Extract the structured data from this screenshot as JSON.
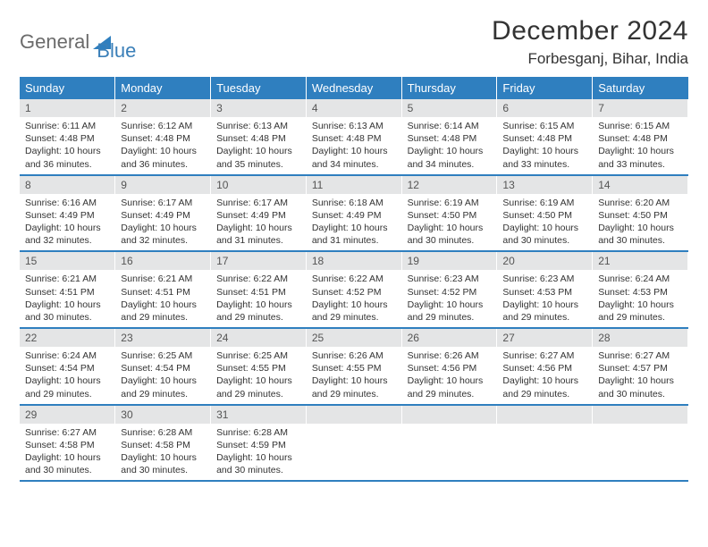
{
  "brand": {
    "text1": "General",
    "text2": "Blue"
  },
  "title": "December 2024",
  "location": "Forbesganj, Bihar, India",
  "colors": {
    "header_bg": "#2f7fbf",
    "header_text": "#ffffff",
    "daynum_bg": "#e4e5e6",
    "row_border": "#2f7fbf",
    "brand_gray": "#6b6b6b",
    "brand_blue": "#3a7fb8"
  },
  "weekdays": [
    "Sunday",
    "Monday",
    "Tuesday",
    "Wednesday",
    "Thursday",
    "Friday",
    "Saturday"
  ],
  "days": [
    {
      "n": "1",
      "sr": "6:11 AM",
      "ss": "4:48 PM",
      "dl": "10 hours and 36 minutes."
    },
    {
      "n": "2",
      "sr": "6:12 AM",
      "ss": "4:48 PM",
      "dl": "10 hours and 36 minutes."
    },
    {
      "n": "3",
      "sr": "6:13 AM",
      "ss": "4:48 PM",
      "dl": "10 hours and 35 minutes."
    },
    {
      "n": "4",
      "sr": "6:13 AM",
      "ss": "4:48 PM",
      "dl": "10 hours and 34 minutes."
    },
    {
      "n": "5",
      "sr": "6:14 AM",
      "ss": "4:48 PM",
      "dl": "10 hours and 34 minutes."
    },
    {
      "n": "6",
      "sr": "6:15 AM",
      "ss": "4:48 PM",
      "dl": "10 hours and 33 minutes."
    },
    {
      "n": "7",
      "sr": "6:15 AM",
      "ss": "4:48 PM",
      "dl": "10 hours and 33 minutes."
    },
    {
      "n": "8",
      "sr": "6:16 AM",
      "ss": "4:49 PM",
      "dl": "10 hours and 32 minutes."
    },
    {
      "n": "9",
      "sr": "6:17 AM",
      "ss": "4:49 PM",
      "dl": "10 hours and 32 minutes."
    },
    {
      "n": "10",
      "sr": "6:17 AM",
      "ss": "4:49 PM",
      "dl": "10 hours and 31 minutes."
    },
    {
      "n": "11",
      "sr": "6:18 AM",
      "ss": "4:49 PM",
      "dl": "10 hours and 31 minutes."
    },
    {
      "n": "12",
      "sr": "6:19 AM",
      "ss": "4:50 PM",
      "dl": "10 hours and 30 minutes."
    },
    {
      "n": "13",
      "sr": "6:19 AM",
      "ss": "4:50 PM",
      "dl": "10 hours and 30 minutes."
    },
    {
      "n": "14",
      "sr": "6:20 AM",
      "ss": "4:50 PM",
      "dl": "10 hours and 30 minutes."
    },
    {
      "n": "15",
      "sr": "6:21 AM",
      "ss": "4:51 PM",
      "dl": "10 hours and 30 minutes."
    },
    {
      "n": "16",
      "sr": "6:21 AM",
      "ss": "4:51 PM",
      "dl": "10 hours and 29 minutes."
    },
    {
      "n": "17",
      "sr": "6:22 AM",
      "ss": "4:51 PM",
      "dl": "10 hours and 29 minutes."
    },
    {
      "n": "18",
      "sr": "6:22 AM",
      "ss": "4:52 PM",
      "dl": "10 hours and 29 minutes."
    },
    {
      "n": "19",
      "sr": "6:23 AM",
      "ss": "4:52 PM",
      "dl": "10 hours and 29 minutes."
    },
    {
      "n": "20",
      "sr": "6:23 AM",
      "ss": "4:53 PM",
      "dl": "10 hours and 29 minutes."
    },
    {
      "n": "21",
      "sr": "6:24 AM",
      "ss": "4:53 PM",
      "dl": "10 hours and 29 minutes."
    },
    {
      "n": "22",
      "sr": "6:24 AM",
      "ss": "4:54 PM",
      "dl": "10 hours and 29 minutes."
    },
    {
      "n": "23",
      "sr": "6:25 AM",
      "ss": "4:54 PM",
      "dl": "10 hours and 29 minutes."
    },
    {
      "n": "24",
      "sr": "6:25 AM",
      "ss": "4:55 PM",
      "dl": "10 hours and 29 minutes."
    },
    {
      "n": "25",
      "sr": "6:26 AM",
      "ss": "4:55 PM",
      "dl": "10 hours and 29 minutes."
    },
    {
      "n": "26",
      "sr": "6:26 AM",
      "ss": "4:56 PM",
      "dl": "10 hours and 29 minutes."
    },
    {
      "n": "27",
      "sr": "6:27 AM",
      "ss": "4:56 PM",
      "dl": "10 hours and 29 minutes."
    },
    {
      "n": "28",
      "sr": "6:27 AM",
      "ss": "4:57 PM",
      "dl": "10 hours and 30 minutes."
    },
    {
      "n": "29",
      "sr": "6:27 AM",
      "ss": "4:58 PM",
      "dl": "10 hours and 30 minutes."
    },
    {
      "n": "30",
      "sr": "6:28 AM",
      "ss": "4:58 PM",
      "dl": "10 hours and 30 minutes."
    },
    {
      "n": "31",
      "sr": "6:28 AM",
      "ss": "4:59 PM",
      "dl": "10 hours and 30 minutes."
    }
  ],
  "labels": {
    "sunrise": "Sunrise:",
    "sunset": "Sunset:",
    "daylight": "Daylight:"
  }
}
